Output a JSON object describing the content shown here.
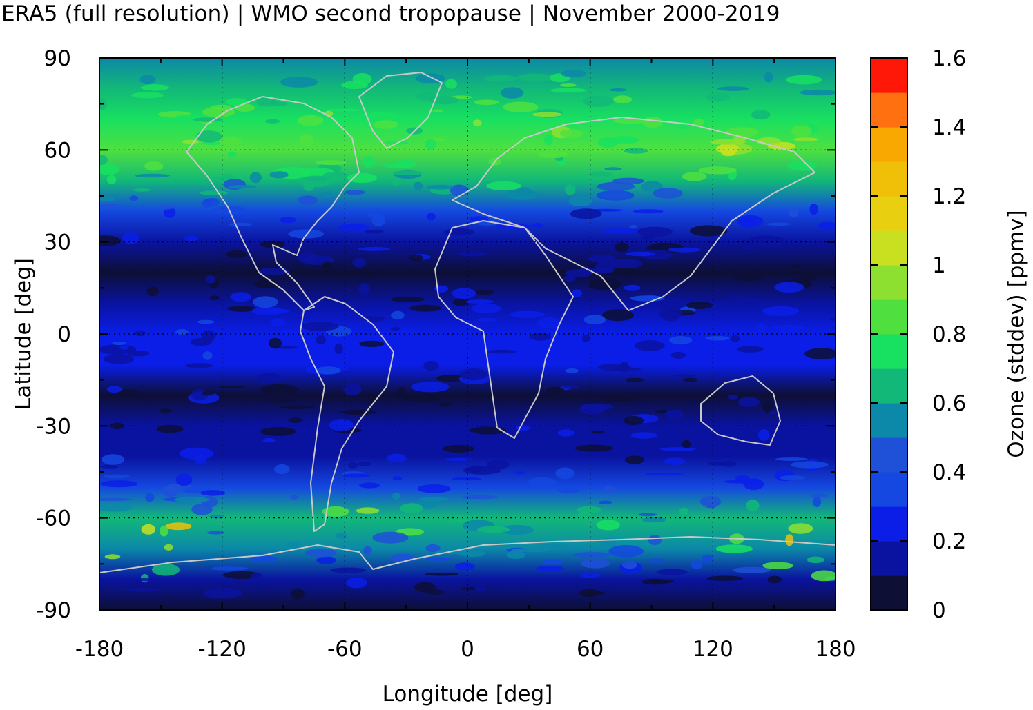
{
  "title": "ERA5 (full resolution) | WMO second tropopause | November 2000-2019",
  "chart_data": {
    "type": "heatmap",
    "xlabel": "Longitude [deg]",
    "ylabel": "Latitude [deg]",
    "xlim": [
      -180,
      180
    ],
    "ylim": [
      -90,
      90
    ],
    "x_ticks": [
      "-180",
      "-120",
      "-60",
      "0",
      "60",
      "120",
      "180"
    ],
    "y_ticks": [
      "90",
      "60",
      "30",
      "0",
      "-30",
      "-60",
      "-90"
    ],
    "grid": "dotted",
    "colorbar": {
      "label": "Ozone (stddev) [ppmv]",
      "range": [
        0,
        1.6
      ],
      "ticks": [
        "0",
        "0.2",
        "0.4",
        "0.6",
        "0.8",
        "1",
        "1.2",
        "1.4",
        "1.6"
      ],
      "levels": [
        0,
        0.1,
        0.2,
        0.3,
        0.4,
        0.5,
        0.6,
        0.7,
        0.8,
        0.9,
        1.0,
        1.1,
        1.2,
        1.3,
        1.4,
        1.5,
        1.6
      ],
      "colors": [
        "#0d0f35",
        "#0a13a0",
        "#0a1ee8",
        "#1448e0",
        "#1f50d8",
        "#0c88a8",
        "#12b878",
        "#18e060",
        "#4fe040",
        "#8ee030",
        "#c8e020",
        "#e8d010",
        "#f0c008",
        "#f8a800",
        "#ff7010",
        "#ff1808",
        "#f01818",
        "#ee2828",
        "#f07878",
        "#ffd0d0"
      ]
    },
    "zonal_profile": {
      "lat": [
        90,
        80,
        70,
        60,
        50,
        40,
        30,
        20,
        10,
        0,
        -10,
        -20,
        -30,
        -40,
        -50,
        -60,
        -70,
        -80,
        -90
      ],
      "value": [
        0.55,
        0.68,
        0.78,
        0.8,
        0.62,
        0.3,
        0.12,
        0.08,
        0.18,
        0.22,
        0.2,
        0.07,
        0.1,
        0.17,
        0.35,
        0.62,
        0.5,
        0.1,
        0.05
      ]
    }
  }
}
